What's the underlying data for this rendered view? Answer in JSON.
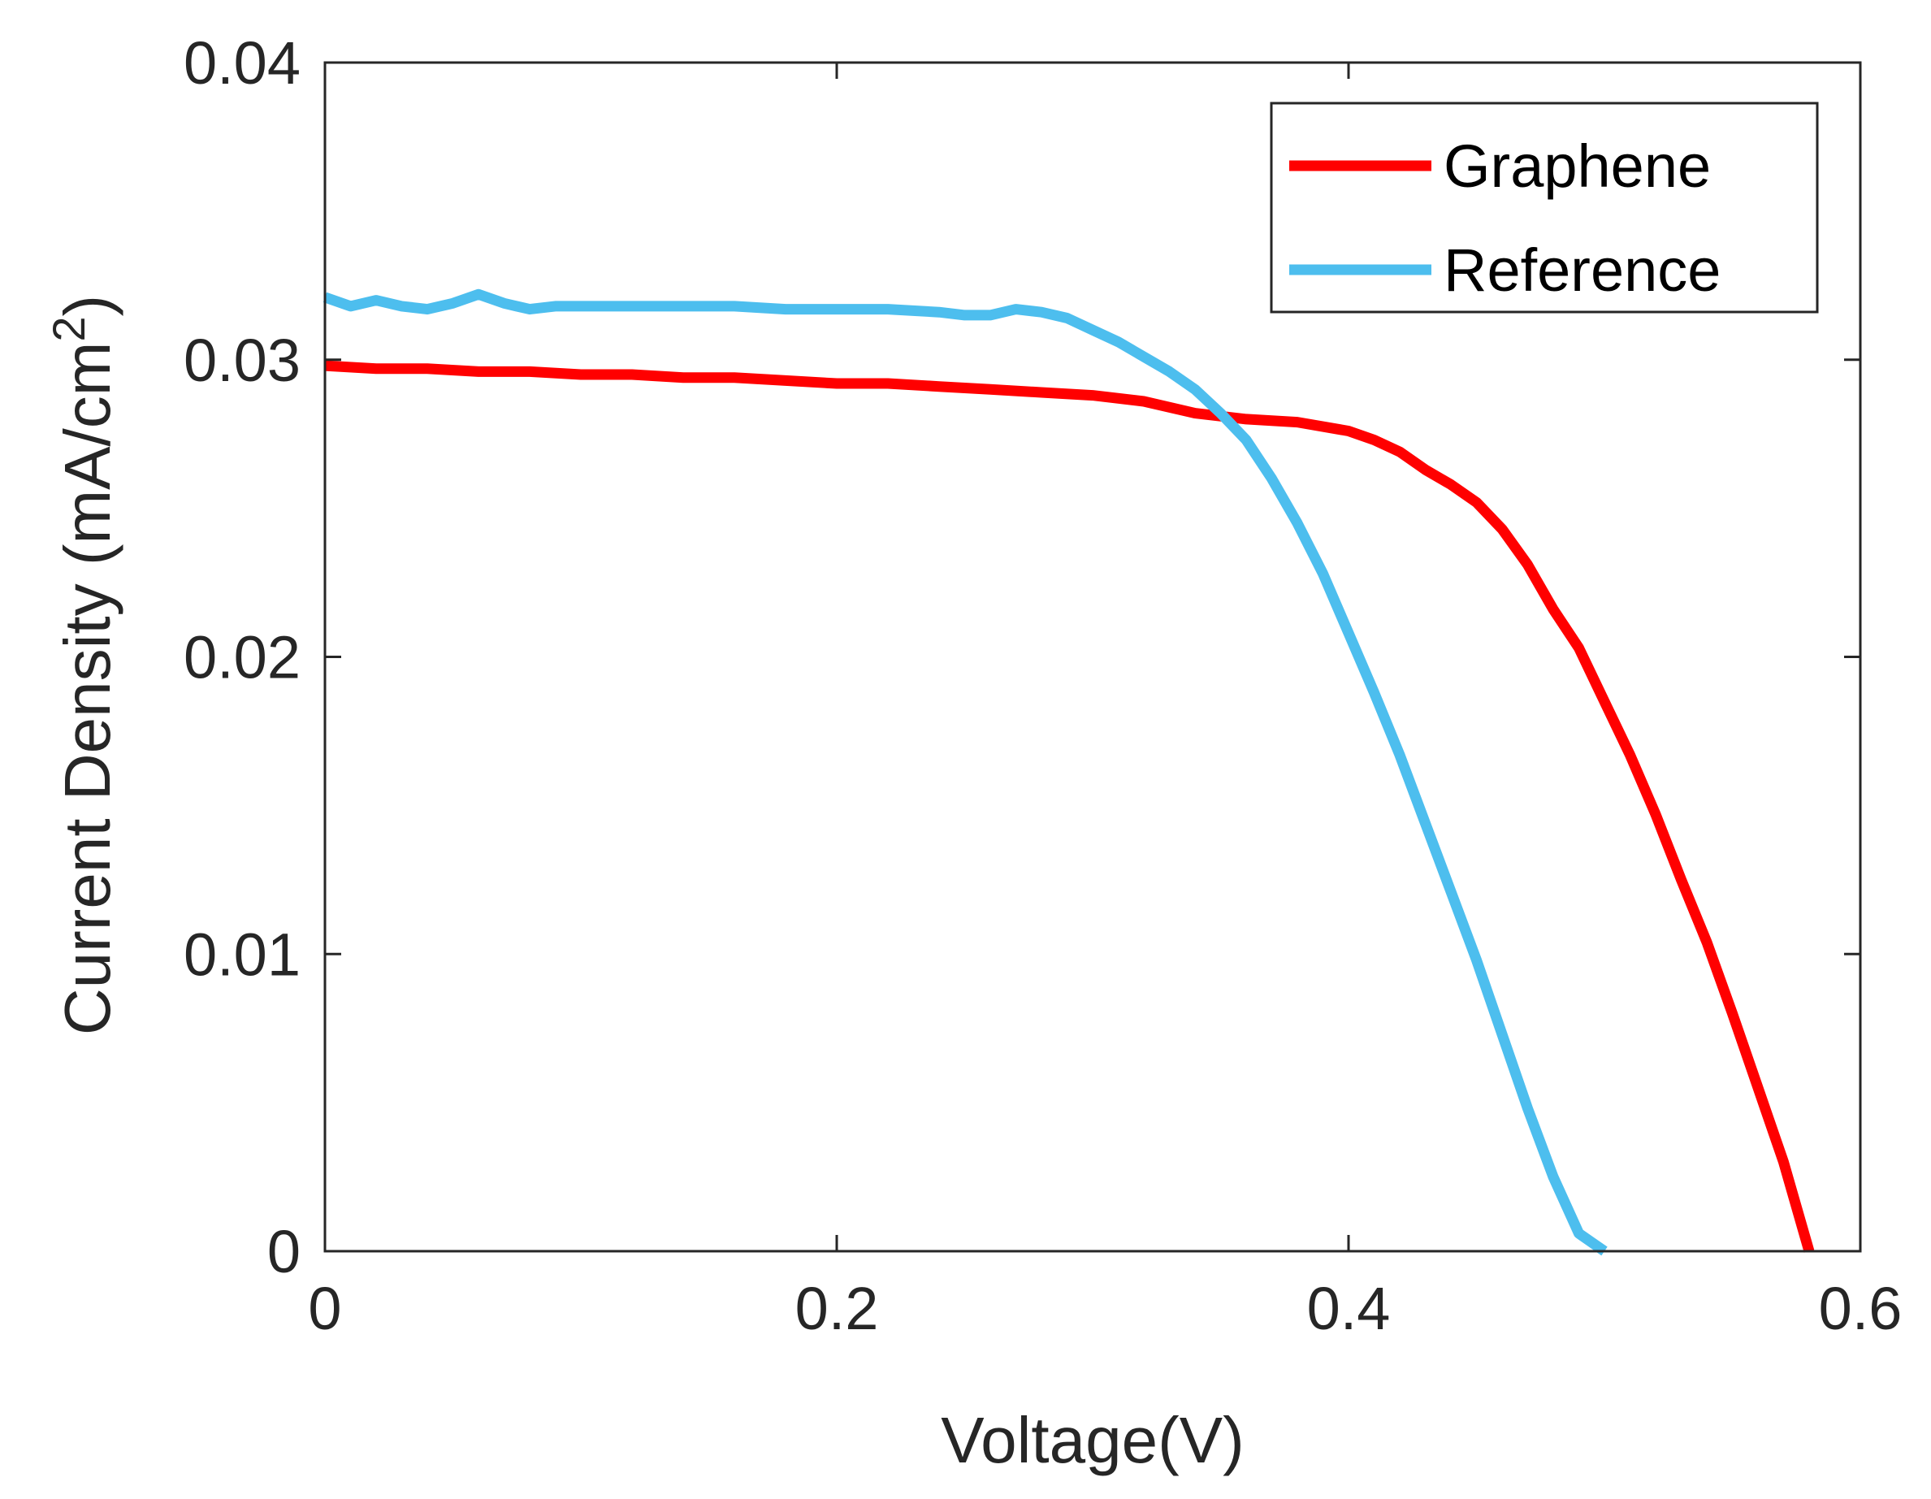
{
  "chart_data": {
    "type": "line",
    "title": "",
    "xlabel": "Voltage(V)",
    "ylabel": "Current Density (mA/cm",
    "ylabel_superscript": "2",
    "ylabel_suffix": ")",
    "xlim": [
      0,
      0.6
    ],
    "ylim": [
      0,
      0.04
    ],
    "grid": false,
    "legend_position": "top-right",
    "x_ticks": [
      0,
      0.2,
      0.4,
      0.6
    ],
    "x_tick_labels": [
      "0",
      "0.2",
      "0.4",
      "0.6"
    ],
    "y_ticks": [
      0,
      0.01,
      0.02,
      0.03,
      0.04
    ],
    "y_tick_labels": [
      "0",
      "0.01",
      "0.02",
      "0.03",
      "0.04"
    ],
    "series": [
      {
        "name": "Graphene",
        "color": "#ff0000",
        "x": [
          0,
          0.02,
          0.04,
          0.06,
          0.08,
          0.1,
          0.12,
          0.14,
          0.16,
          0.18,
          0.2,
          0.22,
          0.24,
          0.26,
          0.28,
          0.3,
          0.32,
          0.34,
          0.36,
          0.38,
          0.4,
          0.41,
          0.42,
          0.43,
          0.44,
          0.45,
          0.46,
          0.47,
          0.48,
          0.49,
          0.5,
          0.51,
          0.52,
          0.53,
          0.54,
          0.55,
          0.56,
          0.57,
          0.58
        ],
        "y": [
          0.0298,
          0.0297,
          0.0297,
          0.0296,
          0.0296,
          0.0295,
          0.0295,
          0.0294,
          0.0294,
          0.0293,
          0.0292,
          0.0292,
          0.0291,
          0.029,
          0.0289,
          0.0288,
          0.0286,
          0.0282,
          0.028,
          0.0279,
          0.0276,
          0.0273,
          0.0269,
          0.0263,
          0.0258,
          0.0252,
          0.0243,
          0.0231,
          0.0216,
          0.0203,
          0.0185,
          0.0167,
          0.0147,
          0.0125,
          0.0104,
          0.008,
          0.0055,
          0.003,
          0.0
        ]
      },
      {
        "name": "Reference",
        "color": "#4dbeee",
        "x": [
          0,
          0.01,
          0.02,
          0.03,
          0.04,
          0.05,
          0.06,
          0.07,
          0.08,
          0.09,
          0.1,
          0.11,
          0.12,
          0.14,
          0.16,
          0.18,
          0.2,
          0.22,
          0.24,
          0.25,
          0.26,
          0.27,
          0.28,
          0.29,
          0.3,
          0.31,
          0.32,
          0.33,
          0.34,
          0.35,
          0.36,
          0.37,
          0.38,
          0.39,
          0.4,
          0.41,
          0.42,
          0.43,
          0.44,
          0.45,
          0.46,
          0.47,
          0.48,
          0.49,
          0.5
        ],
        "y": [
          0.0321,
          0.0318,
          0.032,
          0.0318,
          0.0317,
          0.0319,
          0.0322,
          0.0319,
          0.0317,
          0.0318,
          0.0318,
          0.0318,
          0.0318,
          0.0318,
          0.0318,
          0.0317,
          0.0317,
          0.0317,
          0.0316,
          0.0315,
          0.0315,
          0.0317,
          0.0316,
          0.0314,
          0.031,
          0.0306,
          0.0301,
          0.0296,
          0.029,
          0.0282,
          0.0273,
          0.026,
          0.0245,
          0.0228,
          0.0208,
          0.0188,
          0.0167,
          0.0144,
          0.0121,
          0.0098,
          0.0073,
          0.0048,
          0.0025,
          0.0006,
          0.0
        ]
      }
    ]
  }
}
